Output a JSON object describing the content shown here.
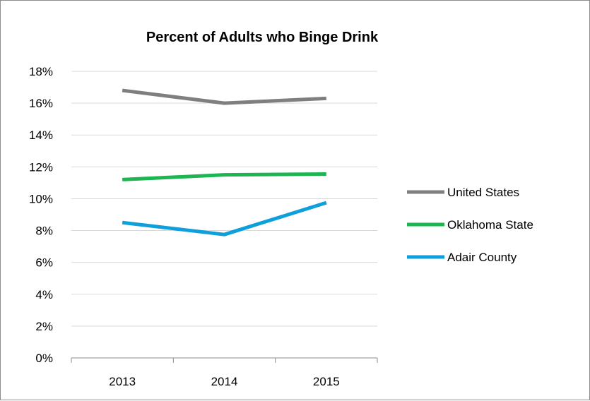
{
  "chart_data": {
    "type": "line",
    "title": "Percent of Adults who Binge Drink",
    "xlabel": "",
    "ylabel": "",
    "categories": [
      "2013",
      "2014",
      "2015"
    ],
    "ylim": [
      0,
      18
    ],
    "yticks": [
      "0%",
      "2%",
      "4%",
      "6%",
      "8%",
      "10%",
      "12%",
      "14%",
      "16%",
      "18%"
    ],
    "grid": true,
    "legend_position": "right",
    "series": [
      {
        "name": "United States",
        "color": "#7f7f7f",
        "values": [
          16.8,
          16.0,
          16.3
        ]
      },
      {
        "name": "Oklahoma State",
        "color": "#1db552",
        "values": [
          11.2,
          11.5,
          11.55
        ]
      },
      {
        "name": "Adair County",
        "color": "#0fa0dc",
        "values": [
          8.5,
          7.75,
          9.75
        ]
      }
    ]
  }
}
